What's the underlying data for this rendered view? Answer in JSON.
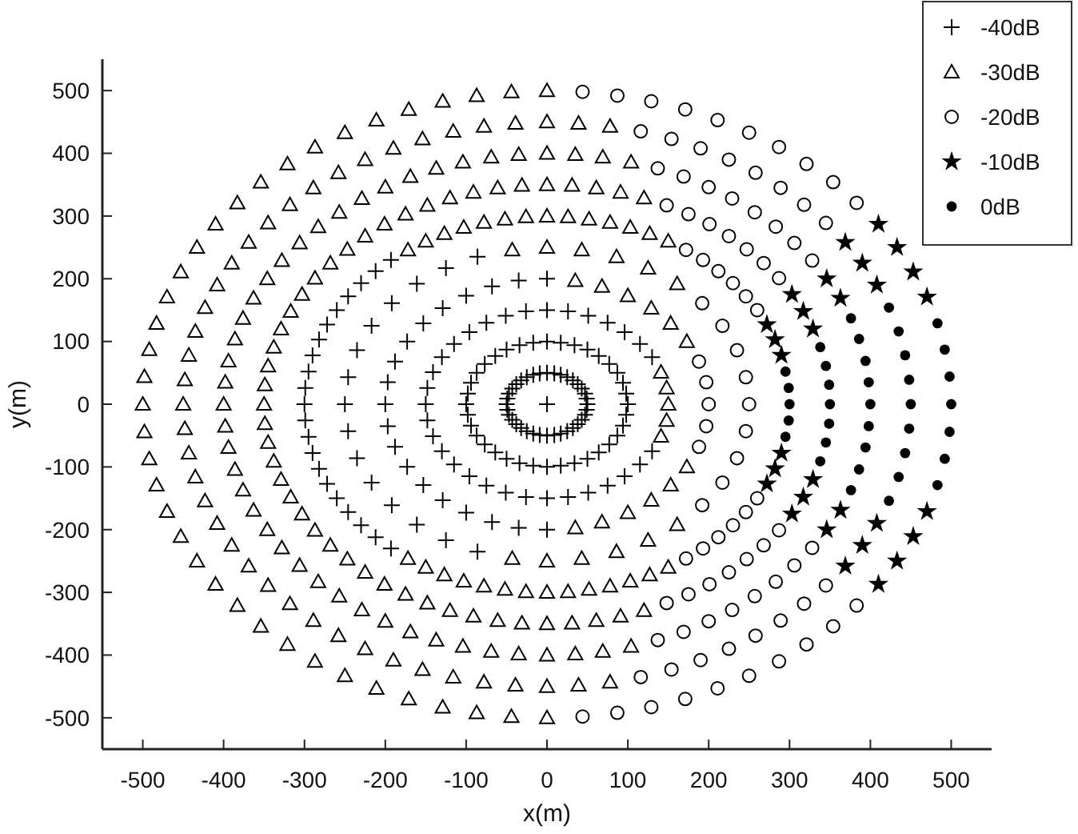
{
  "chart_data": {
    "type": "scatter",
    "xlabel": "x(m)",
    "ylabel": "y(m)",
    "xlim": [
      -550,
      550
    ],
    "ylim": [
      -550,
      550
    ],
    "xticks": [
      -500,
      -400,
      -300,
      -200,
      -100,
      0,
      100,
      200,
      300,
      400,
      500
    ],
    "yticks": [
      -500,
      -400,
      -300,
      -200,
      -100,
      0,
      100,
      200,
      300,
      400,
      500
    ],
    "grid": false,
    "legend": "top right",
    "series": [
      {
        "name": "-40dB",
        "color": "#000000",
        "marker": "cross",
        "x": [
          0,
          -300,
          -299,
          -299,
          -295,
          -295,
          -290,
          -290,
          -282,
          -282,
          -272,
          -272,
          -260,
          -260,
          -246,
          -246,
          -230,
          -230,
          -212,
          -212,
          -193,
          -193,
          -250,
          -246,
          -246,
          -235,
          -235,
          -217,
          -217,
          -192,
          -192,
          -161,
          -161,
          -125,
          -125,
          -86,
          -86,
          0,
          0,
          -200,
          -197,
          -197,
          -188,
          -188,
          -173,
          -173,
          -153,
          -153,
          -129,
          -129,
          -100,
          -100,
          -68,
          -68,
          -35,
          -35,
          130,
          130,
          115,
          115,
          96,
          96,
          75,
          75,
          51,
          51,
          26,
          26,
          0,
          0,
          -150,
          -148,
          -148,
          -141,
          -141,
          -130,
          -130,
          -115,
          -115,
          -96,
          -96,
          -75,
          -75,
          -51,
          -51,
          -26,
          -26,
          100,
          98,
          98,
          94,
          94,
          87,
          87,
          77,
          77,
          64,
          64,
          50,
          50,
          34,
          34,
          17,
          17,
          0,
          0,
          -100,
          -98,
          -98,
          -94,
          -94,
          -87,
          -87,
          -77,
          -77,
          -64,
          -64,
          -50,
          -50,
          -34,
          -34,
          -17,
          -17,
          50,
          49,
          49,
          47,
          47,
          43,
          43,
          38,
          38,
          32,
          32,
          25,
          25,
          17,
          17,
          9,
          9,
          0,
          0,
          -50,
          -49,
          -49,
          -47,
          -47,
          -43,
          -43,
          -38,
          -38,
          -32,
          -32,
          -25,
          -25,
          -17,
          -17,
          -9,
          -9
        ],
        "values": [
          0,
          0,
          26,
          -26,
          52,
          -52,
          78,
          -78,
          103,
          -103,
          127,
          -127,
          150,
          -150,
          172,
          -172,
          193,
          -193,
          212,
          -212,
          230,
          -230,
          0,
          43,
          -43,
          86,
          -86,
          125,
          -125,
          161,
          -161,
          192,
          -192,
          217,
          -217,
          235,
          -235,
          200,
          -200,
          0,
          35,
          -35,
          68,
          -68,
          100,
          -100,
          129,
          -129,
          153,
          -153,
          173,
          -173,
          188,
          -188,
          197,
          -197,
          75,
          -75,
          96,
          -96,
          115,
          -115,
          130,
          -130,
          141,
          -141,
          148,
          -148,
          150,
          -150,
          0,
          26,
          -26,
          51,
          -51,
          75,
          -75,
          96,
          -96,
          115,
          -115,
          130,
          -130,
          141,
          -141,
          148,
          -148,
          0,
          17,
          -17,
          34,
          -34,
          50,
          -50,
          64,
          -64,
          77,
          -77,
          87,
          -87,
          94,
          -94,
          98,
          -98,
          100,
          -100,
          0,
          17,
          -17,
          34,
          -34,
          50,
          -50,
          64,
          -64,
          77,
          -77,
          87,
          -87,
          94,
          -94,
          98,
          -98,
          0,
          9,
          -9,
          17,
          -17,
          25,
          -25,
          32,
          -32,
          38,
          -38,
          43,
          -43,
          47,
          -47,
          49,
          -49,
          50,
          -50,
          0,
          9,
          -9,
          17,
          -17,
          25,
          -25,
          32,
          -32,
          38,
          -38,
          43,
          -43,
          47,
          -47,
          49,
          -49
        ]
      },
      {
        "name": "-30dB",
        "color": "#000000",
        "marker": "triangle",
        "x": [
          0,
          0,
          -500,
          -498,
          -498,
          -492,
          -492,
          -483,
          -483,
          -470,
          -470,
          -453,
          -453,
          -433,
          -433,
          -410,
          -410,
          -383,
          -383,
          -354,
          -354,
          -321,
          -321,
          -287,
          -287,
          -250,
          -250,
          -211,
          -211,
          -171,
          -171,
          -129,
          -129,
          -87,
          -87,
          -44,
          -44,
          78,
          78,
          39,
          39,
          0,
          0,
          -450,
          -448,
          -448,
          -443,
          -443,
          -435,
          -435,
          -423,
          -423,
          -408,
          -408,
          -390,
          -390,
          -369,
          -369,
          -345,
          -345,
          -318,
          -318,
          -289,
          -289,
          -258,
          -258,
          -225,
          -225,
          -190,
          -190,
          -154,
          -154,
          -116,
          -116,
          -78,
          -78,
          -39,
          -39,
          104,
          104,
          69,
          69,
          35,
          35,
          0,
          0,
          -400,
          -398,
          -398,
          -394,
          -394,
          -386,
          -386,
          -376,
          -376,
          -363,
          -363,
          -346,
          -346,
          -328,
          -328,
          -306,
          -306,
          -283,
          -283,
          -257,
          -257,
          -229,
          -229,
          -200,
          -200,
          -169,
          -169,
          -137,
          -137,
          -104,
          -104,
          -69,
          -69,
          -35,
          -35,
          120,
          120,
          91,
          91,
          61,
          61,
          31,
          31,
          0,
          0,
          -350,
          -349,
          -349,
          -345,
          -345,
          -338,
          -338,
          -329,
          -329,
          -317,
          -317,
          -303,
          -303,
          -287,
          -287,
          -268,
          -268,
          -247,
          -247,
          -225,
          -225,
          -201,
          -201,
          -175,
          -175,
          -148,
          -148,
          -120,
          -120,
          -91,
          -91,
          -61,
          -61,
          -31,
          -31,
          150,
          150,
          127,
          127,
          103,
          103,
          78,
          78,
          52,
          52,
          26,
          26,
          0,
          0,
          -172,
          -172,
          -150,
          -150,
          -127,
          -127,
          -103,
          -103,
          -78,
          -78,
          -52,
          -52,
          -26,
          -26,
          161,
          161,
          125,
          125,
          86,
          86,
          43,
          43,
          0,
          0,
          -43,
          -43,
          173,
          173,
          153,
          153,
          129,
          129,
          100,
          100,
          68,
          68,
          35,
          35,
          150,
          148,
          148,
          141,
          141
        ],
        "values": [
          500,
          -500,
          0,
          44,
          -44,
          87,
          -87,
          129,
          -129,
          171,
          -171,
          211,
          -211,
          250,
          -250,
          287,
          -287,
          321,
          -321,
          354,
          -354,
          383,
          -383,
          410,
          -410,
          433,
          -433,
          453,
          -453,
          470,
          -470,
          483,
          -483,
          492,
          -492,
          498,
          -498,
          443,
          -443,
          448,
          -448,
          450,
          -450,
          0,
          39,
          -39,
          78,
          -78,
          116,
          -116,
          154,
          -154,
          190,
          -190,
          225,
          -225,
          258,
          -258,
          289,
          -289,
          318,
          -318,
          345,
          -345,
          369,
          -369,
          390,
          -390,
          408,
          -408,
          423,
          -423,
          435,
          -435,
          443,
          -443,
          448,
          -448,
          386,
          -386,
          394,
          -394,
          398,
          -398,
          400,
          -400,
          0,
          35,
          -35,
          69,
          -69,
          104,
          -104,
          137,
          -137,
          169,
          -169,
          200,
          -200,
          229,
          -229,
          257,
          -257,
          283,
          -283,
          306,
          -306,
          328,
          -328,
          346,
          -346,
          363,
          -363,
          376,
          -376,
          386,
          -386,
          394,
          -394,
          398,
          -398,
          329,
          -329,
          338,
          -338,
          345,
          -345,
          349,
          -349,
          350,
          -350,
          0,
          31,
          -31,
          61,
          -61,
          91,
          -91,
          120,
          -120,
          148,
          -148,
          175,
          -175,
          201,
          -201,
          225,
          -225,
          247,
          -247,
          268,
          -268,
          287,
          -287,
          303,
          -303,
          317,
          -317,
          329,
          -329,
          338,
          -338,
          345,
          -345,
          349,
          -349,
          260,
          -260,
          272,
          -272,
          282,
          -282,
          290,
          -290,
          295,
          -295,
          299,
          -299,
          300,
          -300,
          246,
          -246,
          260,
          -260,
          272,
          -272,
          282,
          -282,
          290,
          -290,
          295,
          -295,
          299,
          -299,
          192,
          -192,
          217,
          -217,
          235,
          -235,
          246,
          -246,
          250,
          -250,
          246,
          -246,
          100,
          -100,
          129,
          -129,
          153,
          -153,
          173,
          -173,
          188,
          -188,
          197,
          -197,
          0,
          26,
          -26,
          51,
          -51
        ]
      },
      {
        "name": "-20dB",
        "color": "#000000",
        "marker": "circle",
        "x": [
          383,
          383,
          354,
          354,
          321,
          321,
          287,
          287,
          250,
          250,
          211,
          211,
          171,
          171,
          129,
          129,
          87,
          87,
          44,
          44,
          345,
          345,
          318,
          318,
          289,
          289,
          258,
          258,
          225,
          225,
          190,
          190,
          154,
          154,
          116,
          116,
          328,
          328,
          306,
          306,
          283,
          283,
          257,
          257,
          229,
          229,
          200,
          200,
          169,
          169,
          137,
          137,
          287,
          287,
          268,
          268,
          247,
          247,
          225,
          225,
          201,
          201,
          175,
          175,
          148,
          148,
          260,
          260,
          246,
          246,
          230,
          230,
          212,
          212,
          193,
          193,
          172,
          172,
          250,
          246,
          246,
          235,
          235,
          217,
          217,
          192,
          192,
          200,
          197,
          197,
          188,
          188
        ],
        "values": [
          321,
          -321,
          354,
          -354,
          383,
          -383,
          410,
          -410,
          433,
          -433,
          453,
          -453,
          470,
          -470,
          483,
          -483,
          492,
          -492,
          498,
          -498,
          289,
          -289,
          318,
          -318,
          345,
          -345,
          369,
          -369,
          390,
          -390,
          408,
          -408,
          423,
          -423,
          435,
          -435,
          229,
          -229,
          257,
          -257,
          283,
          -283,
          306,
          -306,
          328,
          -328,
          346,
          -346,
          363,
          -363,
          376,
          -376,
          201,
          -201,
          225,
          -225,
          247,
          -247,
          268,
          -268,
          287,
          -287,
          303,
          -303,
          317,
          -317,
          150,
          -150,
          172,
          -172,
          193,
          -193,
          212,
          -212,
          230,
          -230,
          246,
          -246,
          0,
          43,
          -43,
          86,
          -86,
          125,
          -125,
          161,
          -161,
          0,
          35,
          -35,
          68,
          -68
        ]
      },
      {
        "name": "-10dB",
        "color": "#000000",
        "marker": "star",
        "x": [
          470,
          470,
          453,
          453,
          433,
          433,
          410,
          410,
          408,
          408,
          390,
          390,
          369,
          369,
          363,
          363,
          346,
          346,
          329,
          329,
          317,
          317,
          303,
          303,
          290,
          290,
          282,
          282,
          272,
          272
        ],
        "values": [
          171,
          -171,
          211,
          -211,
          250,
          -250,
          287,
          -287,
          190,
          -190,
          225,
          -225,
          258,
          -258,
          169,
          -169,
          200,
          -200,
          120,
          -120,
          148,
          -148,
          175,
          -175,
          78,
          -78,
          103,
          -103,
          127,
          -127
        ]
      },
      {
        "name": "0dB",
        "color": "#000000",
        "marker": "point",
        "x": [
          500,
          498,
          498,
          492,
          492,
          483,
          483,
          450,
          448,
          448,
          443,
          443,
          435,
          435,
          423,
          423,
          400,
          398,
          398,
          394,
          394,
          386,
          386,
          376,
          376,
          350,
          349,
          349,
          345,
          345,
          338,
          338,
          300,
          299,
          299,
          295,
          295
        ],
        "values": [
          0,
          44,
          -44,
          87,
          -87,
          129,
          -129,
          0,
          39,
          -39,
          78,
          -78,
          116,
          -116,
          154,
          -154,
          0,
          35,
          -35,
          69,
          -69,
          104,
          -104,
          137,
          -137,
          0,
          31,
          -31,
          61,
          -61,
          91,
          -91,
          0,
          26,
          -26,
          52,
          -52
        ]
      }
    ]
  }
}
